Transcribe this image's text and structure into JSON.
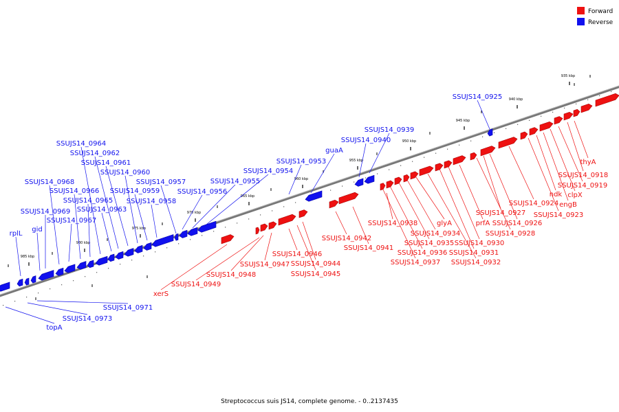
{
  "caption": "Streptococcus suis JS14, complete genome. - 0..2137435",
  "colors": {
    "forward": "#ee1111",
    "reverse": "#1111ee",
    "backbone": "#777777",
    "forward_dark": "#aa0000",
    "reverse_dark": "#0000aa"
  },
  "legend": [
    {
      "label": "Forward",
      "strand": "forward"
    },
    {
      "label": "Reverse",
      "strand": "reverse"
    }
  ],
  "ticks": [
    "935 kbp",
    "940 kbp",
    "945 kbp",
    "950 kbp",
    "955 kbp",
    "960 kbp",
    "965 kbp",
    "970 kbp",
    "975 kbp",
    "980 kbp",
    "985 kbp"
  ],
  "forward_genes": [
    "thyA",
    "SSUJS14_0918",
    "SSUJS14_0919",
    "clpX",
    "engB",
    "ndk",
    "SSUJS14_0923",
    "SSUJS14_0924",
    "SSUJS14_0926",
    "SSUJS14_0927",
    "SSUJS14_0928",
    "prfA",
    "SSUJS14_0930",
    "SSUJS14_0931",
    "SSUJS14_0932",
    "glyA",
    "SSUJS14_0934",
    "SSUJS14_0935",
    "SSUJS14_0936",
    "SSUJS14_0937",
    "SSUJS14_0938",
    "SSUJS14_0941",
    "SSUJS14_0942",
    "SSUJS14_0944",
    "SSUJS14_0945",
    "SSUJS14_0946",
    "SSUJS14_0947",
    "SSUJS14_0948",
    "SSUJS14_0949",
    "xerS"
  ],
  "reverse_genes": [
    "SSUJS14_0925",
    "SSUJS14_0939",
    "SSUJS14_0940",
    "guaA",
    "SSUJS14_0953",
    "SSUJS14_0954",
    "SSUJS14_0955",
    "SSUJS14_0956",
    "SSUJS14_0957",
    "SSUJS14_0958",
    "SSUJS14_0959",
    "SSUJS14_0960",
    "SSUJS14_0961",
    "SSUJS14_0962",
    "SSUJS14_0963",
    "SSUJS14_0964",
    "SSUJS14_0965",
    "SSUJS14_0966",
    "SSUJS14_0967",
    "SSUJS14_0968",
    "SSUJS14_0969",
    "gid",
    "rplL",
    "SSUJS14_0971",
    "SSUJS14_0973",
    "topA"
  ]
}
